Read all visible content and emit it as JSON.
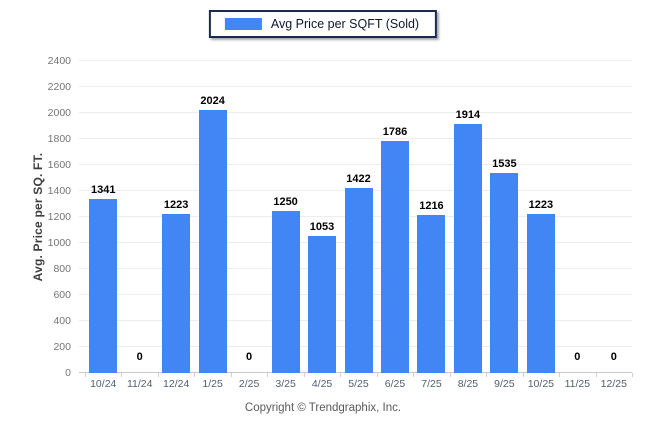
{
  "legend": {
    "label": "Avg Price per SQFT (Sold)"
  },
  "footer": {
    "text": "Copyright © Trendgraphix, Inc."
  },
  "icons": {
    "legend_swatch": "blue-square-swatch"
  },
  "colors": {
    "bar": "#4285f4",
    "grid": "#ededed",
    "axis_line": "#c9c9c9",
    "legend_border": "#1b2b4d",
    "value_label": "#000000",
    "y_tick_label": "#757575",
    "x_tick_label": "#525e6d",
    "footer_text": "#5a5a5a"
  },
  "chart_data": {
    "type": "bar",
    "title": "",
    "xlabel": "",
    "ylabel": "Avg. Price per SQ. FT.",
    "legend_entries": [
      "Avg Price per SQFT (Sold)"
    ],
    "legend_position": "top-center",
    "grid": "horizontal",
    "categories": [
      "10/24",
      "11/24",
      "12/24",
      "1/25",
      "2/25",
      "3/25",
      "4/25",
      "5/25",
      "6/25",
      "7/25",
      "8/25",
      "9/25",
      "10/25",
      "11/25",
      "12/25"
    ],
    "series": [
      {
        "name": "Avg Price per SQFT (Sold)",
        "values": [
          1341,
          0,
          1223,
          2024,
          0,
          1250,
          1053,
          1422,
          1786,
          1216,
          1914,
          1535,
          1223,
          0,
          0
        ]
      }
    ],
    "ylim": [
      0,
      2400
    ],
    "ytick_step": 200,
    "ytick_labels": [
      "0",
      "200",
      "400",
      "600",
      "800",
      "1000",
      "1200",
      "1400",
      "1600",
      "1800",
      "2000",
      "2200",
      "2400"
    ]
  }
}
